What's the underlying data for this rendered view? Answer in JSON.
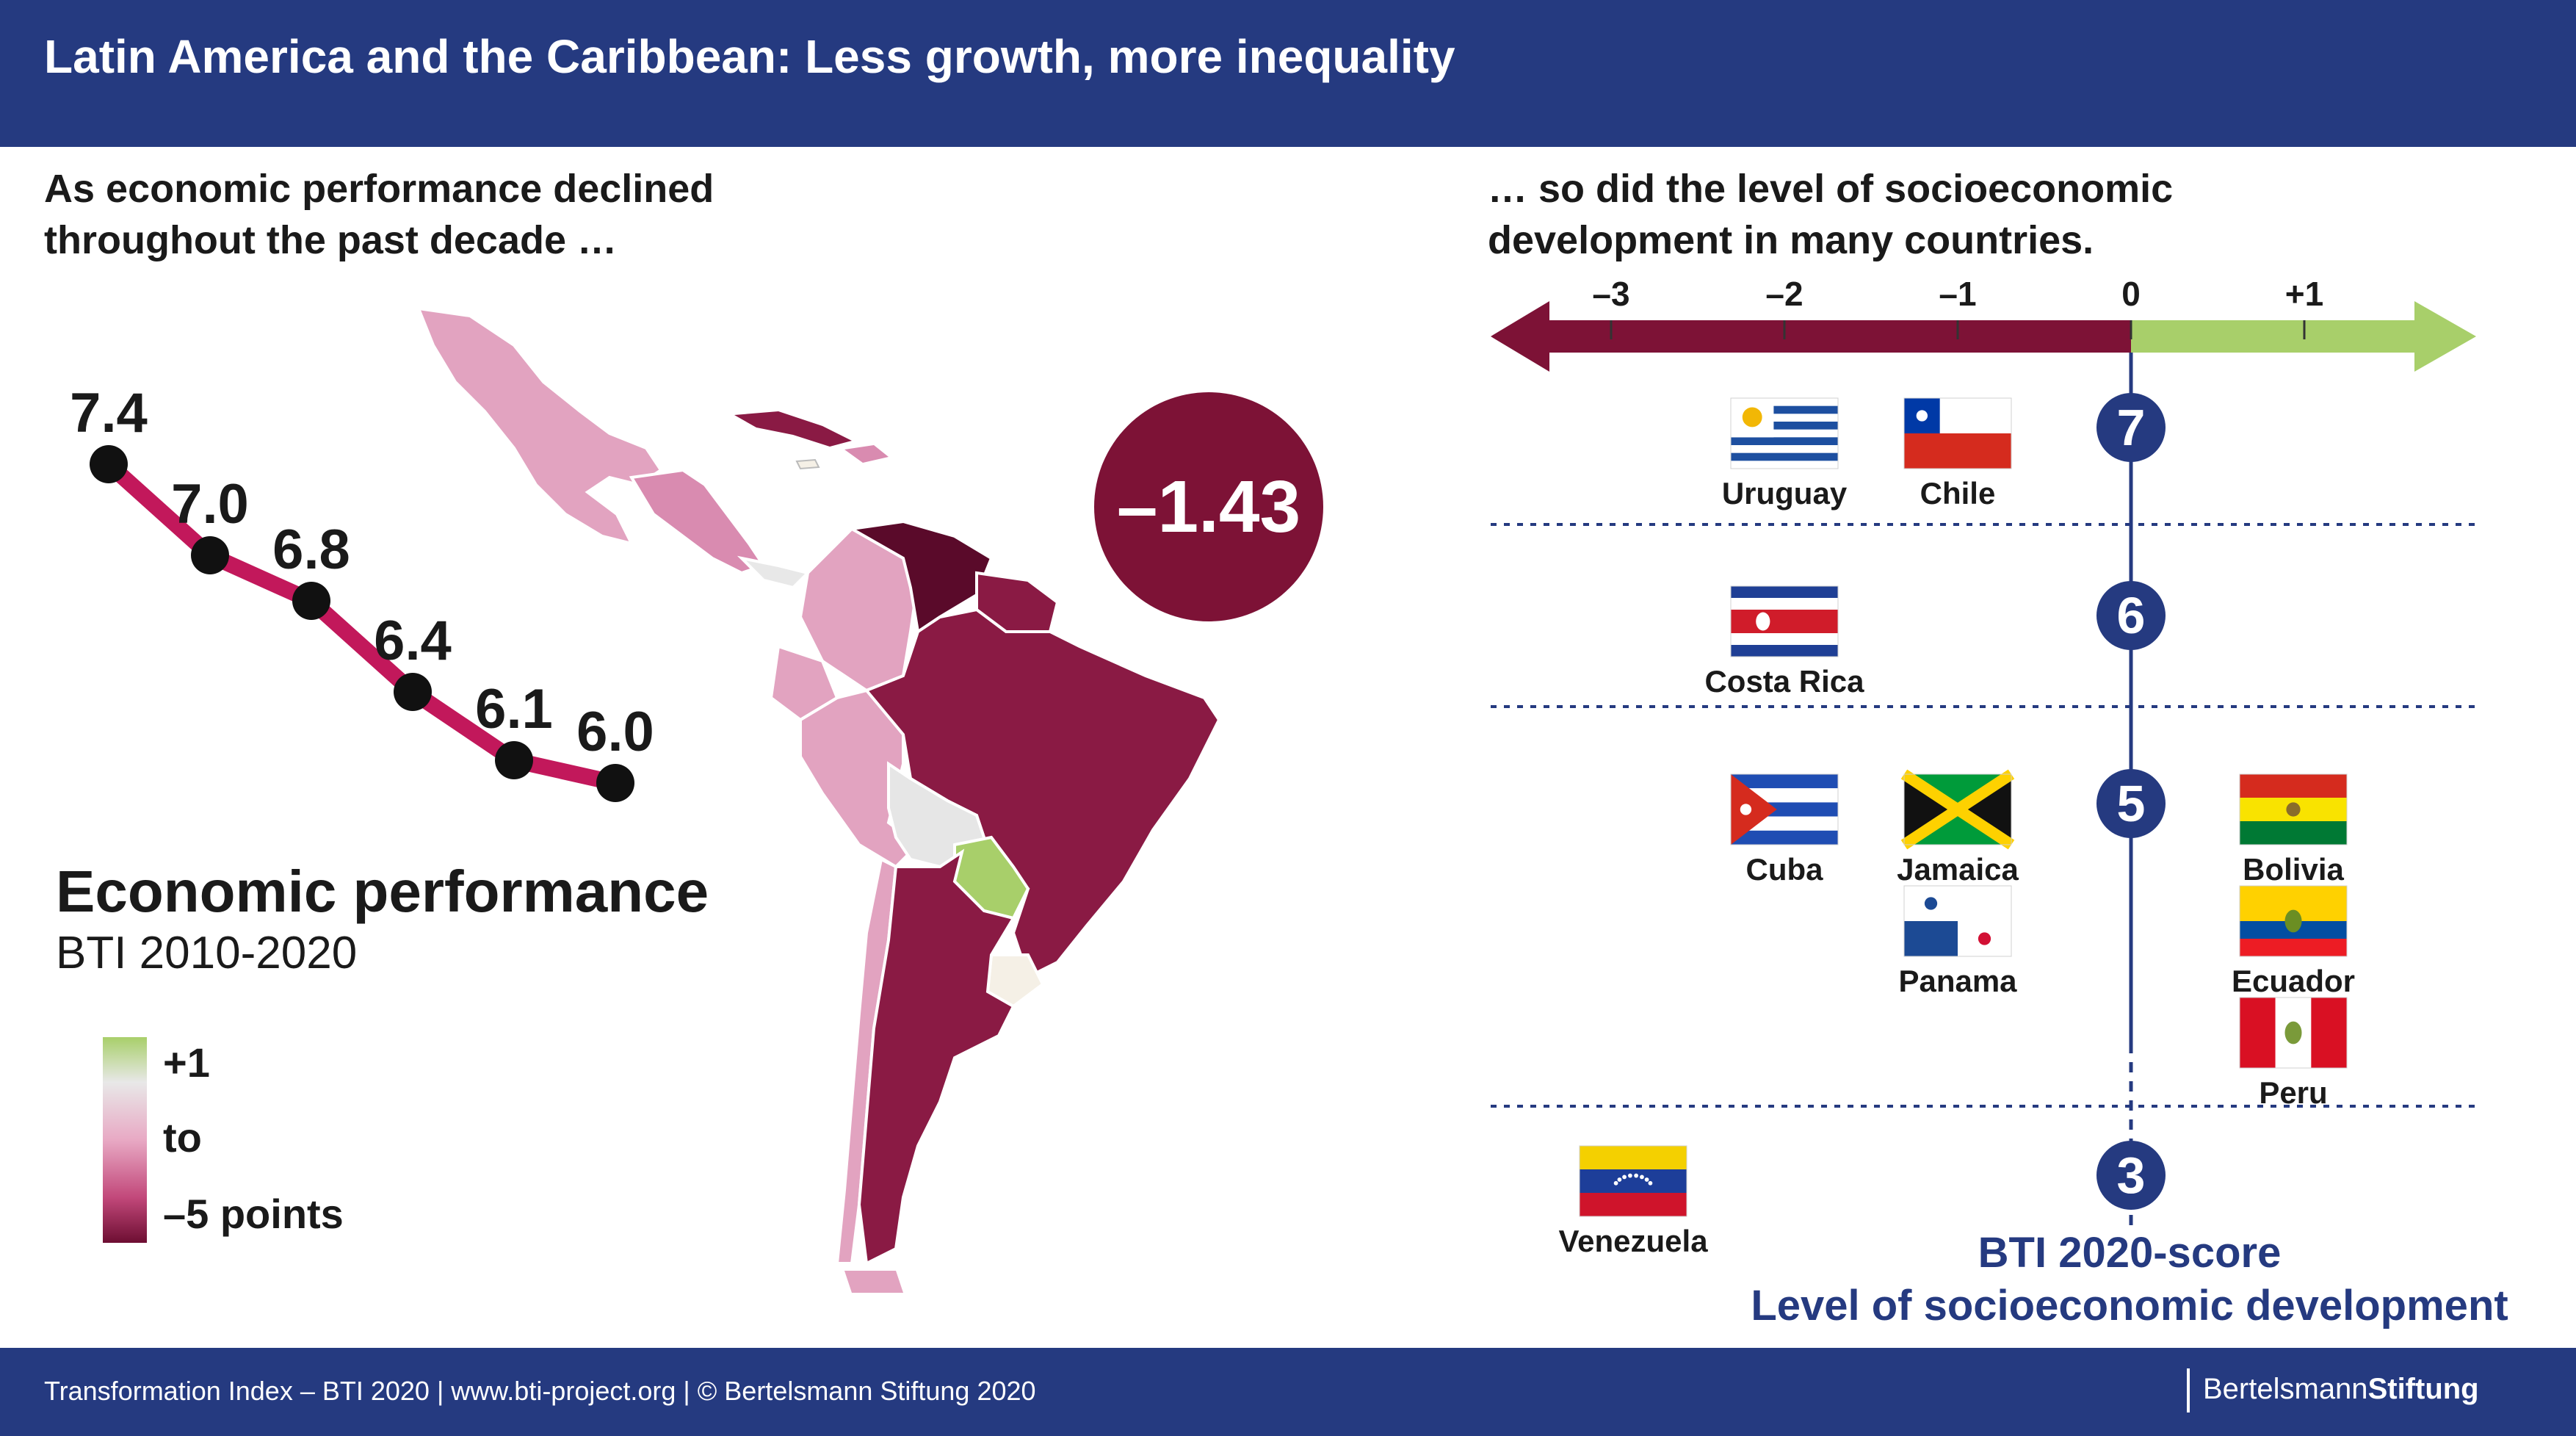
{
  "header": {
    "title": "Latin America and the Caribbean: Less growth, more inequality"
  },
  "left_title": {
    "line1": "As economic performance declined",
    "line2": "throughout the past decade …"
  },
  "right_title": {
    "line1": "… so did the level of socioeconomic",
    "line2": "development in many countries."
  },
  "performance": {
    "title": "Economic performance",
    "subtitle": "BTI 2010-2020",
    "change": "–1.43"
  },
  "legend": {
    "top": "+1",
    "mid": "to",
    "bottom": "–5 points"
  },
  "footer": {
    "credit": "Transformation Index – BTI 2020 | www.bti-project.org | © Bertelsmann Stiftung 2020",
    "brand_regular": "Bertelsmann",
    "brand_bold": "Stiftung"
  },
  "bti_axis": {
    "line1": "BTI 2020-score",
    "line2": "Level of socioeconomic development"
  },
  "colors": {
    "header": "#253a80",
    "decline": "#7d1236",
    "increase": "#a8cf6a",
    "line": "#c2185b"
  },
  "chart_data": [
    {
      "type": "line",
      "title": "Economic performance",
      "subtitle": "BTI 2010-2020",
      "values": [
        7.4,
        7.0,
        6.8,
        6.4,
        6.1,
        6.0
      ],
      "labels": [
        "7.4",
        "7.0",
        "6.8",
        "6.4",
        "6.1",
        "6.0"
      ],
      "annotation": "–1.43"
    },
    {
      "type": "scatter",
      "title": "Level of socioeconomic development",
      "x_label": "",
      "x_ticks": [
        "–3",
        "–2",
        "–1",
        "0",
        "+1"
      ],
      "x_tick_values": [
        -3,
        -2,
        -1,
        0,
        1
      ],
      "xlim": [
        -3.7,
        2.0
      ],
      "y_label": "BTI 2020-score",
      "score_levels": [
        7,
        6,
        5,
        3
      ],
      "points": [
        {
          "country": "Uruguay",
          "score": 7,
          "change": -2,
          "flag": "uruguay"
        },
        {
          "country": "Chile",
          "score": 7,
          "change": -1,
          "flag": "chile"
        },
        {
          "country": "Costa Rica",
          "score": 6,
          "change": -2,
          "flag": "costa-rica"
        },
        {
          "country": "Cuba",
          "score": 5,
          "change": -2,
          "flag": "cuba"
        },
        {
          "country": "Jamaica",
          "score": 5,
          "change": -1,
          "flag": "jamaica"
        },
        {
          "country": "Panama",
          "score": 5,
          "change": -1,
          "flag": "panama"
        },
        {
          "country": "Bolivia",
          "score": 5,
          "change": 1,
          "flag": "bolivia"
        },
        {
          "country": "Ecuador",
          "score": 5,
          "change": 1,
          "flag": "ecuador"
        },
        {
          "country": "Peru",
          "score": 5,
          "change": 1,
          "flag": "peru"
        },
        {
          "country": "Venezuela",
          "score": 3,
          "change": -3,
          "flag": "venezuela"
        }
      ]
    }
  ]
}
